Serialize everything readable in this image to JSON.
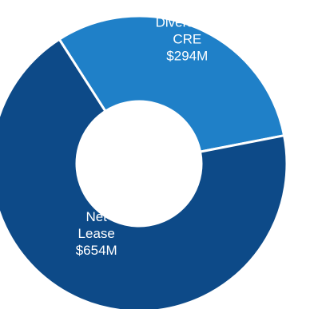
{
  "chart_data": {
    "type": "pie",
    "donut": true,
    "title": "",
    "slices": [
      {
        "name": "Net Lease",
        "value": 654,
        "label_lines": [
          "Net",
          "Lease",
          "$654M"
        ],
        "color": "#0d4a88"
      },
      {
        "name": "Diversified CRE",
        "value": 294,
        "label_lines": [
          "Diversified",
          "CRE",
          "$294M"
        ],
        "color": "#1f80c8"
      }
    ],
    "separator_color": "#ffffff",
    "legend": "none"
  }
}
